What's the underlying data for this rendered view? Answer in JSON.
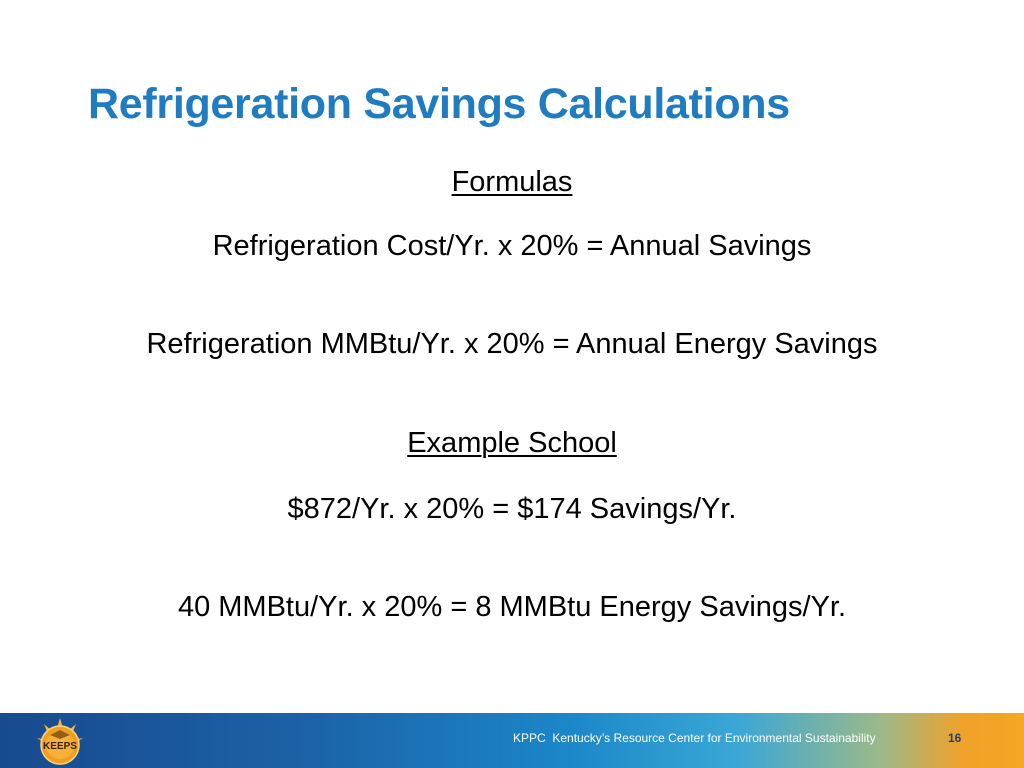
{
  "slide": {
    "title": "Refrigeration Savings Calculations",
    "formulas_heading": "Formulas",
    "formula_1": "Refrigeration Cost/Yr. x 20% = Annual Savings",
    "formula_2": "Refrigeration MMBtu/Yr. x 20% = Annual Energy Savings",
    "example_heading": "Example School",
    "example_1": "$872/Yr. x 20% = $174 Savings/Yr.",
    "example_2": "40 MMBtu/Yr. x 20% = 8 MMBtu Energy Savings/Yr."
  },
  "footer": {
    "logo_text": "KEEPS",
    "org_text": "KPPC  Kentucky’s Resource Center for Environmental Sustainability",
    "page_number": "16"
  },
  "colors": {
    "title": "#1f7cc1",
    "footer_left": "#184a8e",
    "footer_right": "#f5a623",
    "logo_orange": "#f0a020"
  }
}
